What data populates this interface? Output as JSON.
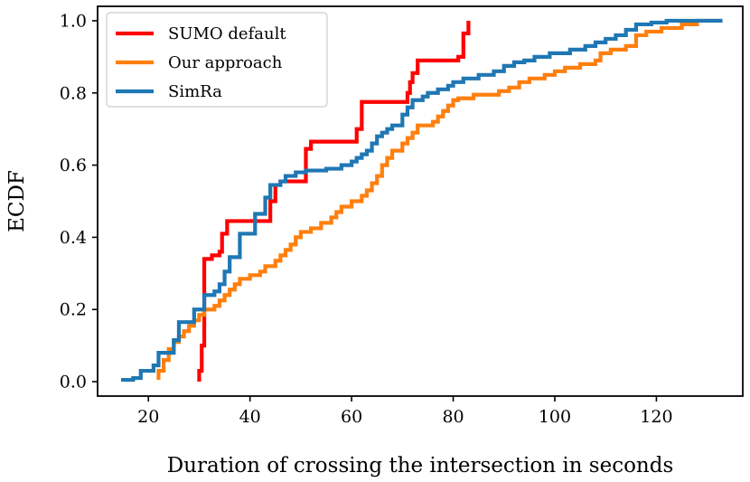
{
  "chart_data": {
    "type": "line",
    "xlabel": "Duration of crossing the intersection in seconds",
    "ylabel": "ECDF",
    "xlim": [
      10,
      137
    ],
    "ylim": [
      -0.04,
      1.04
    ],
    "xticks": [
      20,
      40,
      60,
      80,
      100,
      120
    ],
    "yticks": [
      0.0,
      0.2,
      0.4,
      0.6,
      0.8,
      1.0
    ],
    "xtick_labels": [
      "20",
      "40",
      "60",
      "80",
      "100",
      "120"
    ],
    "ytick_labels": [
      "0.0",
      "0.2",
      "0.4",
      "0.6",
      "0.8",
      "1.0"
    ],
    "grid": false,
    "legend_position": "top-left",
    "series": [
      {
        "name": "SUMO default",
        "color": "#ff0000",
        "step": true,
        "points": [
          [
            30,
            0.0
          ],
          [
            30,
            0.03
          ],
          [
            30.5,
            0.03
          ],
          [
            30.5,
            0.1
          ],
          [
            31,
            0.1
          ],
          [
            31,
            0.34
          ],
          [
            32.5,
            0.34
          ],
          [
            32.5,
            0.35
          ],
          [
            34,
            0.35
          ],
          [
            34,
            0.36
          ],
          [
            34.5,
            0.36
          ],
          [
            34.5,
            0.41
          ],
          [
            35.5,
            0.41
          ],
          [
            35.5,
            0.445
          ],
          [
            44,
            0.445
          ],
          [
            44,
            0.5
          ],
          [
            45,
            0.5
          ],
          [
            45,
            0.545
          ],
          [
            46,
            0.545
          ],
          [
            46,
            0.555
          ],
          [
            51,
            0.555
          ],
          [
            51,
            0.645
          ],
          [
            52,
            0.645
          ],
          [
            52,
            0.665
          ],
          [
            61,
            0.665
          ],
          [
            61,
            0.7
          ],
          [
            62,
            0.7
          ],
          [
            62,
            0.775
          ],
          [
            71,
            0.775
          ],
          [
            71,
            0.8
          ],
          [
            71.5,
            0.8
          ],
          [
            71.5,
            0.83
          ],
          [
            72,
            0.83
          ],
          [
            72,
            0.855
          ],
          [
            73,
            0.855
          ],
          [
            73,
            0.89
          ],
          [
            81,
            0.89
          ],
          [
            81,
            0.9
          ],
          [
            82,
            0.9
          ],
          [
            82,
            0.965
          ],
          [
            83,
            0.965
          ],
          [
            83,
            1.0
          ]
        ]
      },
      {
        "name": "Our approach",
        "color": "#ff7f0e",
        "step": true,
        "points": [
          [
            22,
            0.005
          ],
          [
            22,
            0.03
          ],
          [
            23,
            0.03
          ],
          [
            23,
            0.06
          ],
          [
            24,
            0.06
          ],
          [
            24,
            0.09
          ],
          [
            25,
            0.09
          ],
          [
            25,
            0.11
          ],
          [
            26,
            0.11
          ],
          [
            26,
            0.125
          ],
          [
            27,
            0.125
          ],
          [
            27,
            0.14
          ],
          [
            28,
            0.14
          ],
          [
            28,
            0.155
          ],
          [
            29,
            0.155
          ],
          [
            29,
            0.17
          ],
          [
            30,
            0.17
          ],
          [
            30,
            0.185
          ],
          [
            31,
            0.185
          ],
          [
            31,
            0.2
          ],
          [
            33,
            0.2
          ],
          [
            33,
            0.21
          ],
          [
            34,
            0.21
          ],
          [
            34,
            0.225
          ],
          [
            35,
            0.225
          ],
          [
            35,
            0.24
          ],
          [
            36,
            0.24
          ],
          [
            36,
            0.255
          ],
          [
            37,
            0.255
          ],
          [
            37,
            0.27
          ],
          [
            38,
            0.27
          ],
          [
            38,
            0.285
          ],
          [
            40,
            0.285
          ],
          [
            40,
            0.295
          ],
          [
            42,
            0.295
          ],
          [
            42,
            0.305
          ],
          [
            43,
            0.305
          ],
          [
            43,
            0.32
          ],
          [
            45,
            0.32
          ],
          [
            45,
            0.335
          ],
          [
            46,
            0.335
          ],
          [
            46,
            0.35
          ],
          [
            47,
            0.35
          ],
          [
            47,
            0.365
          ],
          [
            48,
            0.365
          ],
          [
            48,
            0.38
          ],
          [
            49,
            0.38
          ],
          [
            49,
            0.4
          ],
          [
            50,
            0.4
          ],
          [
            50,
            0.415
          ],
          [
            52,
            0.415
          ],
          [
            52,
            0.425
          ],
          [
            54,
            0.425
          ],
          [
            54,
            0.44
          ],
          [
            56,
            0.44
          ],
          [
            56,
            0.455
          ],
          [
            57,
            0.455
          ],
          [
            57,
            0.47
          ],
          [
            58,
            0.47
          ],
          [
            58,
            0.485
          ],
          [
            60,
            0.485
          ],
          [
            60,
            0.5
          ],
          [
            62,
            0.5
          ],
          [
            62,
            0.515
          ],
          [
            63,
            0.515
          ],
          [
            63,
            0.53
          ],
          [
            64,
            0.53
          ],
          [
            64,
            0.55
          ],
          [
            65,
            0.55
          ],
          [
            65,
            0.57
          ],
          [
            66,
            0.57
          ],
          [
            66,
            0.6
          ],
          [
            67,
            0.6
          ],
          [
            67,
            0.62
          ],
          [
            68,
            0.62
          ],
          [
            68,
            0.64
          ],
          [
            70,
            0.64
          ],
          [
            70,
            0.66
          ],
          [
            71,
            0.66
          ],
          [
            71,
            0.675
          ],
          [
            72,
            0.675
          ],
          [
            72,
            0.69
          ],
          [
            73,
            0.69
          ],
          [
            73,
            0.71
          ],
          [
            76,
            0.71
          ],
          [
            76,
            0.72
          ],
          [
            77,
            0.72
          ],
          [
            77,
            0.735
          ],
          [
            78,
            0.735
          ],
          [
            78,
            0.75
          ],
          [
            79,
            0.75
          ],
          [
            79,
            0.765
          ],
          [
            80,
            0.765
          ],
          [
            80,
            0.78
          ],
          [
            81,
            0.78
          ],
          [
            81,
            0.785
          ],
          [
            84,
            0.785
          ],
          [
            84,
            0.795
          ],
          [
            89,
            0.795
          ],
          [
            89,
            0.805
          ],
          [
            91,
            0.805
          ],
          [
            91,
            0.815
          ],
          [
            93,
            0.815
          ],
          [
            93,
            0.83
          ],
          [
            95,
            0.83
          ],
          [
            95,
            0.84
          ],
          [
            98,
            0.84
          ],
          [
            98,
            0.85
          ],
          [
            100,
            0.85
          ],
          [
            100,
            0.86
          ],
          [
            102,
            0.86
          ],
          [
            102,
            0.87
          ],
          [
            105,
            0.87
          ],
          [
            105,
            0.88
          ],
          [
            108,
            0.88
          ],
          [
            108,
            0.89
          ],
          [
            109,
            0.89
          ],
          [
            109,
            0.91
          ],
          [
            111,
            0.91
          ],
          [
            111,
            0.92
          ],
          [
            114,
            0.92
          ],
          [
            114,
            0.93
          ],
          [
            116,
            0.93
          ],
          [
            116,
            0.96
          ],
          [
            118,
            0.96
          ],
          [
            118,
            0.97
          ],
          [
            121,
            0.97
          ],
          [
            121,
            0.98
          ],
          [
            125,
            0.98
          ],
          [
            125,
            0.99
          ],
          [
            128,
            0.99
          ],
          [
            128,
            1.0
          ],
          [
            133,
            1.0
          ]
        ]
      },
      {
        "name": "SimRa",
        "color": "#1f77b4",
        "step": true,
        "points": [
          [
            15,
            0.0
          ],
          [
            15,
            0.005
          ],
          [
            17,
            0.005
          ],
          [
            17,
            0.01
          ],
          [
            18.5,
            0.01
          ],
          [
            18.5,
            0.03
          ],
          [
            21,
            0.03
          ],
          [
            21,
            0.045
          ],
          [
            22,
            0.045
          ],
          [
            22,
            0.08
          ],
          [
            25,
            0.08
          ],
          [
            25,
            0.115
          ],
          [
            26,
            0.115
          ],
          [
            26,
            0.165
          ],
          [
            29,
            0.165
          ],
          [
            29,
            0.2
          ],
          [
            31,
            0.2
          ],
          [
            31,
            0.24
          ],
          [
            33,
            0.24
          ],
          [
            33,
            0.25
          ],
          [
            34,
            0.25
          ],
          [
            34,
            0.27
          ],
          [
            35,
            0.27
          ],
          [
            35,
            0.305
          ],
          [
            36,
            0.305
          ],
          [
            36,
            0.345
          ],
          [
            38,
            0.345
          ],
          [
            38,
            0.41
          ],
          [
            41,
            0.41
          ],
          [
            41,
            0.465
          ],
          [
            43,
            0.465
          ],
          [
            43,
            0.51
          ],
          [
            44,
            0.51
          ],
          [
            44,
            0.545
          ],
          [
            46,
            0.545
          ],
          [
            46,
            0.555
          ],
          [
            47,
            0.555
          ],
          [
            47,
            0.57
          ],
          [
            49,
            0.57
          ],
          [
            49,
            0.58
          ],
          [
            51,
            0.58
          ],
          [
            51,
            0.585
          ],
          [
            55,
            0.585
          ],
          [
            55,
            0.59
          ],
          [
            58,
            0.59
          ],
          [
            58,
            0.6
          ],
          [
            60,
            0.6
          ],
          [
            60,
            0.61
          ],
          [
            61,
            0.61
          ],
          [
            61,
            0.62
          ],
          [
            62,
            0.62
          ],
          [
            62,
            0.63
          ],
          [
            63,
            0.63
          ],
          [
            63,
            0.64
          ],
          [
            64,
            0.64
          ],
          [
            64,
            0.66
          ],
          [
            65,
            0.66
          ],
          [
            65,
            0.68
          ],
          [
            66,
            0.68
          ],
          [
            66,
            0.69
          ],
          [
            67,
            0.69
          ],
          [
            67,
            0.7
          ],
          [
            68,
            0.7
          ],
          [
            68,
            0.71
          ],
          [
            70,
            0.71
          ],
          [
            70,
            0.74
          ],
          [
            71,
            0.74
          ],
          [
            71,
            0.76
          ],
          [
            72,
            0.76
          ],
          [
            72,
            0.78
          ],
          [
            74,
            0.78
          ],
          [
            74,
            0.79
          ],
          [
            75,
            0.79
          ],
          [
            75,
            0.8
          ],
          [
            77,
            0.8
          ],
          [
            77,
            0.81
          ],
          [
            79,
            0.81
          ],
          [
            79,
            0.82
          ],
          [
            80,
            0.82
          ],
          [
            80,
            0.83
          ],
          [
            82,
            0.83
          ],
          [
            82,
            0.84
          ],
          [
            85,
            0.84
          ],
          [
            85,
            0.85
          ],
          [
            88,
            0.85
          ],
          [
            88,
            0.86
          ],
          [
            90,
            0.86
          ],
          [
            90,
            0.875
          ],
          [
            92,
            0.875
          ],
          [
            92,
            0.885
          ],
          [
            94,
            0.885
          ],
          [
            94,
            0.89
          ],
          [
            96,
            0.89
          ],
          [
            96,
            0.9
          ],
          [
            99,
            0.9
          ],
          [
            99,
            0.91
          ],
          [
            103,
            0.91
          ],
          [
            103,
            0.92
          ],
          [
            106,
            0.92
          ],
          [
            106,
            0.93
          ],
          [
            108,
            0.93
          ],
          [
            108,
            0.94
          ],
          [
            110,
            0.94
          ],
          [
            110,
            0.95
          ],
          [
            112,
            0.95
          ],
          [
            112,
            0.96
          ],
          [
            114,
            0.96
          ],
          [
            114,
            0.975
          ],
          [
            116,
            0.975
          ],
          [
            116,
            0.99
          ],
          [
            119,
            0.99
          ],
          [
            119,
            0.995
          ],
          [
            122,
            0.995
          ],
          [
            122,
            1.0
          ],
          [
            133,
            1.0
          ]
        ]
      }
    ]
  }
}
